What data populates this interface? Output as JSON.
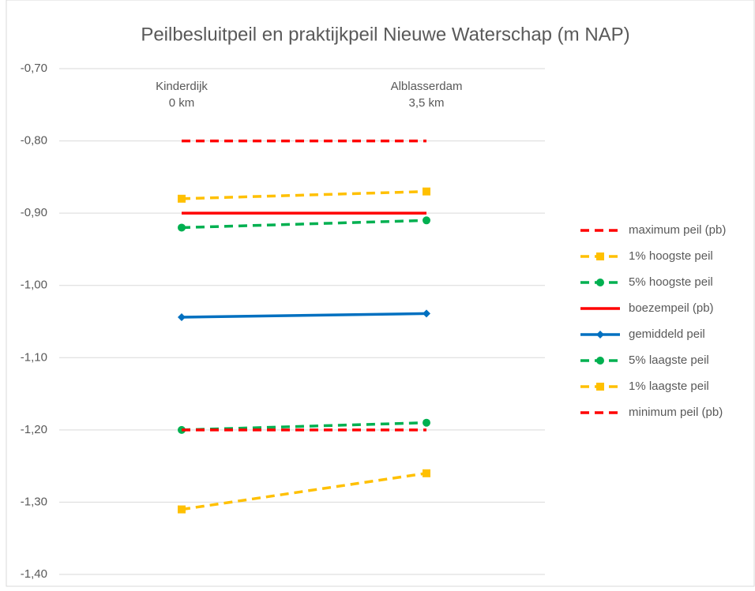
{
  "chart_data": {
    "type": "line",
    "title": "Peilbesluitpeil en praktijkpeil Nieuwe Waterschap (m NAP)",
    "categories": [
      "Kinderdijk",
      "Alblasserdam"
    ],
    "category_sublabels": [
      "0 km",
      "3,5 km"
    ],
    "series": [
      {
        "name": "maximum peil (pb)",
        "color": "#ff0000",
        "dash": true,
        "marker": "none",
        "values": [
          -0.8,
          -0.8
        ]
      },
      {
        "name": "1% hoogste peil",
        "color": "#ffc000",
        "dash": true,
        "marker": "square",
        "values": [
          -0.88,
          -0.87
        ]
      },
      {
        "name": "5% hoogste peil",
        "color": "#00b050",
        "dash": true,
        "marker": "circle",
        "values": [
          -0.92,
          -0.91
        ]
      },
      {
        "name": "boezempeil (pb)",
        "color": "#ff0000",
        "dash": false,
        "marker": "none",
        "values": [
          -0.9,
          -0.9
        ]
      },
      {
        "name": "gemiddeld peil",
        "color": "#0070c0",
        "dash": false,
        "marker": "diamond",
        "values": [
          -1.044,
          -1.039
        ]
      },
      {
        "name": "5% laagste peil",
        "color": "#00b050",
        "dash": true,
        "marker": "circle",
        "values": [
          -1.2,
          -1.19
        ]
      },
      {
        "name": "1% laagste peil",
        "color": "#ffc000",
        "dash": true,
        "marker": "square",
        "values": [
          -1.31,
          -1.26
        ]
      },
      {
        "name": "minimum peil (pb)",
        "color": "#ff0000",
        "dash": true,
        "marker": "none",
        "values": [
          -1.2,
          -1.2
        ]
      }
    ],
    "ylim": [
      -1.4,
      -0.7
    ],
    "yticks": [
      {
        "value": -1.4,
        "label": "-1,40"
      },
      {
        "value": -1.3,
        "label": "-1,30"
      },
      {
        "value": -1.2,
        "label": "-1,20"
      },
      {
        "value": -1.1,
        "label": "-1,10"
      },
      {
        "value": -1.0,
        "label": "-1,00"
      },
      {
        "value": -0.9,
        "label": "-0,90"
      },
      {
        "value": -0.8,
        "label": "-0,80"
      },
      {
        "value": -0.7,
        "label": "-0,70"
      }
    ],
    "grid": true,
    "legend": "right"
  }
}
